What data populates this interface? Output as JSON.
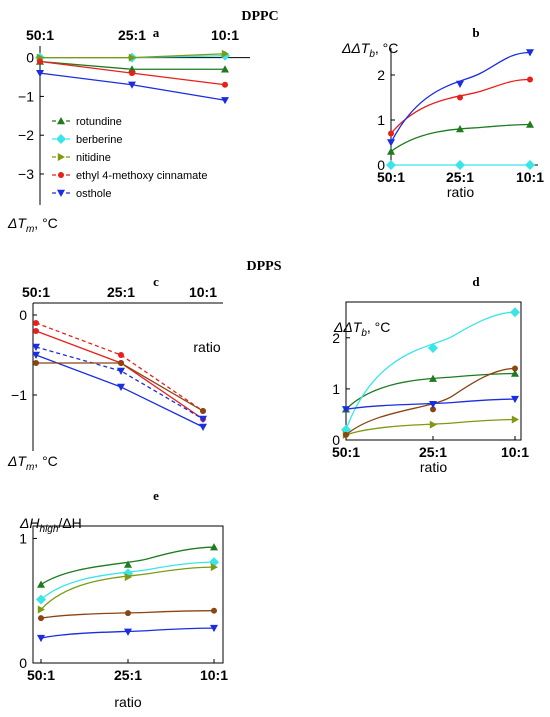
{
  "figure": {
    "title_top": "DPPC",
    "title_mid": "DPPS"
  },
  "legend": [
    {
      "name": "rotundine",
      "color": "#1e7b1e",
      "marker": "triangle-up"
    },
    {
      "name": "berberine",
      "color": "#39e5e8",
      "marker": "diamond"
    },
    {
      "name": "nitidine",
      "color": "#7d9a12",
      "marker": "triangle-right"
    },
    {
      "name": "ethyl 4-methoxy cinnamate",
      "color": "#e8201c",
      "marker": "circle"
    },
    {
      "name": "osthole",
      "color": "#1a2ee0",
      "marker": "triangle-down"
    }
  ],
  "chart_data": [
    {
      "panel": "a",
      "type": "line",
      "categories": [
        "50:1",
        "25:1",
        "10:1"
      ],
      "ylabel_main": "ΔT",
      "ylabel_sub": "m",
      "ylabel_unit": ", °C",
      "ylim": [
        -3.8,
        0.3
      ],
      "yticks": [
        "0",
        "−1",
        "−2",
        "−3"
      ],
      "series": [
        {
          "name": "rotundine",
          "values": [
            -0.1,
            -0.3,
            -0.3
          ],
          "color": "#1e7b1e",
          "marker": "triangle-up"
        },
        {
          "name": "berberine",
          "values": [
            0.0,
            0.0,
            0.05
          ],
          "color": "#39e5e8",
          "marker": "diamond"
        },
        {
          "name": "nitidine",
          "values": [
            0.0,
            0.0,
            0.1
          ],
          "color": "#7d9a12",
          "marker": "triangle-right"
        },
        {
          "name": "ethyl 4-methoxy cinnamate",
          "values": [
            -0.1,
            -0.4,
            -0.7
          ],
          "color": "#e8201c",
          "marker": "circle"
        },
        {
          "name": "osthole",
          "values": [
            -0.4,
            -0.7,
            -1.1
          ],
          "color": "#1a2ee0",
          "marker": "triangle-down"
        }
      ]
    },
    {
      "panel": "b",
      "type": "line",
      "categories": [
        "50:1",
        "25:1",
        "10:1"
      ],
      "xlabel": "ratio",
      "ylabel_main": "ΔΔT",
      "ylabel_sub": "b",
      "ylabel_unit": ", °C",
      "ylim": [
        0,
        2.6
      ],
      "yticks": [
        "0",
        "1",
        "2"
      ],
      "series": [
        {
          "name": "rotundine",
          "values": [
            0.3,
            0.8,
            0.9
          ],
          "color": "#1e7b1e",
          "marker": "triangle-up"
        },
        {
          "name": "berberine",
          "values": [
            0.0,
            0.0,
            0.0
          ],
          "color": "#39e5e8",
          "marker": "diamond"
        },
        {
          "name": "ethyl 4-methoxy cinnamate",
          "values": [
            0.7,
            1.5,
            1.9
          ],
          "color": "#e8201c",
          "marker": "circle"
        },
        {
          "name": "osthole",
          "values": [
            0.5,
            1.8,
            2.5
          ],
          "color": "#1a2ee0",
          "marker": "triangle-down"
        }
      ]
    },
    {
      "panel": "c",
      "type": "line",
      "categories": [
        "50:1",
        "25:1",
        "10:1"
      ],
      "xlabel": "ratio",
      "ylabel_main": "ΔT",
      "ylabel_sub": "m",
      "ylabel_unit": ", °C",
      "ylim": [
        -1.7,
        0.15
      ],
      "yticks": [
        "0",
        "−1"
      ],
      "series": [
        {
          "name": "ethyl 4-methoxy cinnamate",
          "values": [
            -0.2,
            -0.6,
            -1.3
          ],
          "color": "#e8201c",
          "marker": "circle"
        },
        {
          "name": "ethyl 4-methoxy cinnamate (dashed)",
          "values": [
            -0.1,
            -0.5,
            -1.2
          ],
          "color": "#e8201c",
          "marker": "circle",
          "dashed": true
        },
        {
          "name": "osthole",
          "values": [
            -0.5,
            -0.9,
            -1.4
          ],
          "color": "#1a2ee0",
          "marker": "triangle-down"
        },
        {
          "name": "osthole (dashed)",
          "values": [
            -0.4,
            -0.7,
            -1.3
          ],
          "color": "#1a2ee0",
          "marker": "triangle-down",
          "dashed": true
        },
        {
          "name": "brown",
          "values": [
            -0.6,
            -0.6,
            -1.2
          ],
          "color": "#8b4513",
          "marker": "circle"
        }
      ]
    },
    {
      "panel": "d",
      "type": "line",
      "categories": [
        "50:1",
        "25:1",
        "10:1"
      ],
      "xlabel": "ratio",
      "ylabel_main": "ΔΔT",
      "ylabel_sub": "b",
      "ylabel_unit": ", °C",
      "ylim": [
        0,
        2.7
      ],
      "yticks": [
        "0",
        "1",
        "2"
      ],
      "series": [
        {
          "name": "rotundine",
          "values": [
            0.6,
            1.2,
            1.3
          ],
          "color": "#1e7b1e",
          "marker": "triangle-up"
        },
        {
          "name": "berberine",
          "values": [
            0.2,
            1.8,
            2.5
          ],
          "color": "#39e5e8",
          "marker": "diamond"
        },
        {
          "name": "nitidine",
          "values": [
            0.1,
            0.3,
            0.4
          ],
          "color": "#7d9a12",
          "marker": "triangle-right"
        },
        {
          "name": "brown",
          "values": [
            0.1,
            0.6,
            1.4
          ],
          "color": "#8b4513",
          "marker": "circle"
        },
        {
          "name": "osthole",
          "values": [
            0.6,
            0.7,
            0.8
          ],
          "color": "#1a2ee0",
          "marker": "triangle-down"
        }
      ]
    },
    {
      "panel": "e",
      "type": "line",
      "categories": [
        "50:1",
        "25:1",
        "10:1"
      ],
      "xlabel": "ratio",
      "ylabel_main": "ΔH",
      "ylabel_sub": "high",
      "ylabel_unit": "/ΔH",
      "ylim": [
        0,
        1.1
      ],
      "yticks": [
        "0",
        "1"
      ],
      "series": [
        {
          "name": "rotundine",
          "values": [
            0.63,
            0.79,
            0.93
          ],
          "color": "#1e7b1e",
          "marker": "triangle-up"
        },
        {
          "name": "berberine",
          "values": [
            0.51,
            0.72,
            0.81
          ],
          "color": "#39e5e8",
          "marker": "diamond"
        },
        {
          "name": "nitidine",
          "values": [
            0.43,
            0.69,
            0.77
          ],
          "color": "#7d9a12",
          "marker": "triangle-right"
        },
        {
          "name": "brown",
          "values": [
            0.36,
            0.4,
            0.42
          ],
          "color": "#8b4513",
          "marker": "circle"
        },
        {
          "name": "osthole",
          "values": [
            0.2,
            0.25,
            0.28
          ],
          "color": "#1a2ee0",
          "marker": "triangle-down"
        }
      ]
    }
  ]
}
